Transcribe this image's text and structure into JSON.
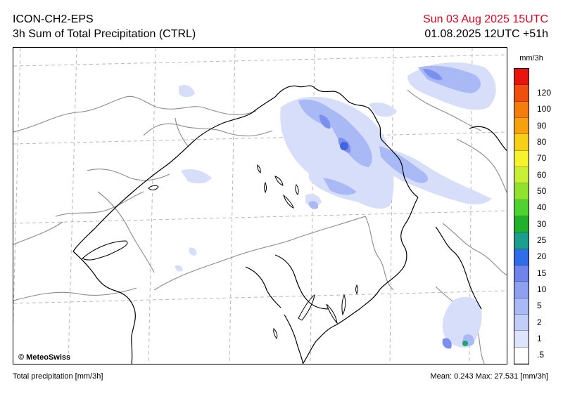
{
  "header": {
    "model": "ICON-CH2-EPS",
    "product": "3h Sum of Total Precipitation (CTRL)",
    "valid_time": "Sun 03 Aug 2025 15UTC",
    "run_time": "01.08.2025 12UTC +51h"
  },
  "map": {
    "credit": "© MeteoSwiss"
  },
  "legend": {
    "unit": "mm/3h",
    "classes": [
      {
        "label": ".5",
        "color": "#ffffff"
      },
      {
        "label": "1",
        "color": "#dde4fb"
      },
      {
        "label": "2",
        "color": "#c3cef8"
      },
      {
        "label": "5",
        "color": "#a9b9f5"
      },
      {
        "label": "10",
        "color": "#8ea1f0"
      },
      {
        "label": "15",
        "color": "#6f85ec"
      },
      {
        "label": "20",
        "color": "#2f6ee8"
      },
      {
        "label": "25",
        "color": "#1c9e8e"
      },
      {
        "label": "30",
        "color": "#21b02a"
      },
      {
        "label": "40",
        "color": "#4cd32e"
      },
      {
        "label": "50",
        "color": "#8fe32e"
      },
      {
        "label": "60",
        "color": "#c7ef36"
      },
      {
        "label": "70",
        "color": "#f6f32c"
      },
      {
        "label": "80",
        "color": "#f6cf17"
      },
      {
        "label": "90",
        "color": "#f6a10e"
      },
      {
        "label": "100",
        "color": "#f47e0b"
      },
      {
        "label": "120",
        "color": "#f04e0c"
      },
      {
        "label": "",
        "color": "#e8150f"
      }
    ]
  },
  "footer": {
    "left": "Total precipitation [mm/3h]",
    "right": "Mean:   0.243 Max:  27.531 [mm/3h]"
  }
}
